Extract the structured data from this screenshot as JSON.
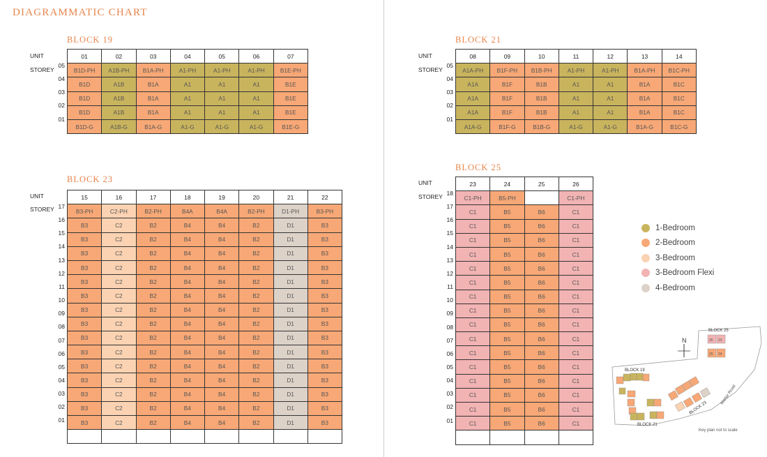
{
  "page_title": "DIAGRAMMATIC CHART",
  "colors": {
    "1-Bedroom": "#c9b45e",
    "2-Bedroom": "#f7a876",
    "3-Bedroom": "#fbd3b2",
    "3-Bedroom Flexi": "#f2b3b3",
    "4-Bedroom": "#ddd2c8",
    "empty": "#ffffff"
  },
  "labels": {
    "unit": "UNIT",
    "storey": "STOREY"
  },
  "legend": [
    {
      "label": "1-Bedroom",
      "type": "1-Bedroom"
    },
    {
      "label": "2-Bedroom",
      "type": "2-Bedroom"
    },
    {
      "label": "3-Bedroom",
      "type": "3-Bedroom"
    },
    {
      "label": "3-Bedroom Flexi",
      "type": "3-Bedroom Flexi"
    },
    {
      "label": "4-Bedroom",
      "type": "4-Bedroom"
    }
  ],
  "blocks": [
    {
      "name": "BLOCK 19",
      "units": [
        "01",
        "02",
        "03",
        "04",
        "05",
        "06",
        "07"
      ],
      "column_types": [
        "2-Bedroom",
        "1-Bedroom",
        "2-Bedroom",
        "1-Bedroom",
        "1-Bedroom",
        "1-Bedroom",
        "2-Bedroom"
      ],
      "rows": [
        {
          "storey": "05",
          "cells": [
            "B1D-PH",
            "A1B-PH",
            "B1A-PH",
            "A1-PH",
            "A1-PH",
            "A1-PH",
            "B1E-PH"
          ]
        },
        {
          "storey": "04",
          "cells": [
            "B1D",
            "A1B",
            "B1A",
            "A1",
            "A1",
            "A1",
            "B1E"
          ]
        },
        {
          "storey": "03",
          "cells": [
            "B1D",
            "A1B",
            "B1A",
            "A1",
            "A1",
            "A1",
            "B1E"
          ]
        },
        {
          "storey": "02",
          "cells": [
            "B1D",
            "A1B",
            "B1A",
            "A1",
            "A1",
            "A1",
            "B1E"
          ]
        },
        {
          "storey": "01",
          "cells": [
            "B1D-G",
            "A1B-G",
            "B1A-G",
            "A1-G",
            "A1-G",
            "A1-G",
            "B1E-G"
          ]
        }
      ]
    },
    {
      "name": "BLOCK 21",
      "units": [
        "08",
        "09",
        "10",
        "11",
        "12",
        "13",
        "14"
      ],
      "column_types": [
        "1-Bedroom",
        "2-Bedroom",
        "2-Bedroom",
        "1-Bedroom",
        "1-Bedroom",
        "2-Bedroom",
        "2-Bedroom"
      ],
      "rows": [
        {
          "storey": "05",
          "cells": [
            "A1A-PH",
            "B1F-PH",
            "B1B-PH",
            "A1-PH",
            "A1-PH",
            "B1A-PH",
            "B1C-PH"
          ]
        },
        {
          "storey": "04",
          "cells": [
            "A1A",
            "B1F",
            "B1B",
            "A1",
            "A1",
            "B1A",
            "B1C"
          ]
        },
        {
          "storey": "03",
          "cells": [
            "A1A",
            "B1F",
            "B1B",
            "A1",
            "A1",
            "B1A",
            "B1C"
          ]
        },
        {
          "storey": "02",
          "cells": [
            "A1A",
            "B1F",
            "B1B",
            "A1",
            "A1",
            "B1A",
            "B1C"
          ]
        },
        {
          "storey": "01",
          "cells": [
            "A1A-G",
            "B1F-G",
            "B1B-G",
            "A1-G",
            "A1-G",
            "B1A-G",
            "B1C-G"
          ]
        }
      ]
    },
    {
      "name": "BLOCK 23",
      "units": [
        "15",
        "16",
        "17",
        "18",
        "19",
        "20",
        "21",
        "22"
      ],
      "column_types": [
        "2-Bedroom",
        "3-Bedroom",
        "2-Bedroom",
        "2-Bedroom",
        "2-Bedroom",
        "2-Bedroom",
        "4-Bedroom",
        "2-Bedroom"
      ],
      "rows": [
        {
          "storey": "17",
          "cells": [
            "B3-PH",
            "C2-PH",
            "B2-PH",
            "B4A",
            "B4A",
            "B2-PH",
            "D1-PH",
            "B3-PH"
          ]
        },
        {
          "storey": "16",
          "cells": [
            "B3",
            "C2",
            "B2",
            "B4",
            "B4",
            "B2",
            "D1",
            "B3"
          ]
        },
        {
          "storey": "15",
          "cells": [
            "B3",
            "C2",
            "B2",
            "B4",
            "B4",
            "B2",
            "D1",
            "B3"
          ]
        },
        {
          "storey": "14",
          "cells": [
            "B3",
            "C2",
            "B2",
            "B4",
            "B4",
            "B2",
            "D1",
            "B3"
          ]
        },
        {
          "storey": "13",
          "cells": [
            "B3",
            "C2",
            "B2",
            "B4",
            "B4",
            "B2",
            "D1",
            "B3"
          ]
        },
        {
          "storey": "12",
          "cells": [
            "B3",
            "C2",
            "B2",
            "B4",
            "B4",
            "B2",
            "D1",
            "B3"
          ]
        },
        {
          "storey": "11",
          "cells": [
            "B3",
            "C2",
            "B2",
            "B4",
            "B4",
            "B2",
            "D1",
            "B3"
          ]
        },
        {
          "storey": "10",
          "cells": [
            "B3",
            "C2",
            "B2",
            "B4",
            "B4",
            "B2",
            "D1",
            "B3"
          ]
        },
        {
          "storey": "09",
          "cells": [
            "B3",
            "C2",
            "B2",
            "B4",
            "B4",
            "B2",
            "D1",
            "B3"
          ]
        },
        {
          "storey": "08",
          "cells": [
            "B3",
            "C2",
            "B2",
            "B4",
            "B4",
            "B2",
            "D1",
            "B3"
          ]
        },
        {
          "storey": "07",
          "cells": [
            "B3",
            "C2",
            "B2",
            "B4",
            "B4",
            "B2",
            "D1",
            "B3"
          ]
        },
        {
          "storey": "06",
          "cells": [
            "B3",
            "C2",
            "B2",
            "B4",
            "B4",
            "B2",
            "D1",
            "B3"
          ]
        },
        {
          "storey": "05",
          "cells": [
            "B3",
            "C2",
            "B2",
            "B4",
            "B4",
            "B2",
            "D1",
            "B3"
          ]
        },
        {
          "storey": "04",
          "cells": [
            "B3",
            "C2",
            "B2",
            "B4",
            "B4",
            "B2",
            "D1",
            "B3"
          ]
        },
        {
          "storey": "03",
          "cells": [
            "B3",
            "C2",
            "B2",
            "B4",
            "B4",
            "B2",
            "D1",
            "B3"
          ]
        },
        {
          "storey": "02",
          "cells": [
            "B3",
            "C2",
            "B2",
            "B4",
            "B4",
            "B2",
            "D1",
            "B3"
          ]
        },
        {
          "storey": "01",
          "cells": [
            "",
            "",
            "",
            "",
            "",
            "",
            "",
            ""
          ]
        }
      ]
    },
    {
      "name": "BLOCK 25",
      "units": [
        "23",
        "24",
        "25",
        "26"
      ],
      "column_types": [
        "3-Bedroom Flexi",
        "2-Bedroom",
        "2-Bedroom",
        "3-Bedroom Flexi"
      ],
      "rows": [
        {
          "storey": "18",
          "cells": [
            "C1-PH",
            "B5-PH",
            "",
            "C1-PH"
          ]
        },
        {
          "storey": "17",
          "cells": [
            "C1",
            "B5",
            "B6",
            "C1"
          ]
        },
        {
          "storey": "16",
          "cells": [
            "C1",
            "B5",
            "B6",
            "C1"
          ]
        },
        {
          "storey": "15",
          "cells": [
            "C1",
            "B5",
            "B6",
            "C1"
          ]
        },
        {
          "storey": "14",
          "cells": [
            "C1",
            "B5",
            "B6",
            "C1"
          ]
        },
        {
          "storey": "13",
          "cells": [
            "C1",
            "B5",
            "B6",
            "C1"
          ]
        },
        {
          "storey": "12",
          "cells": [
            "C1",
            "B5",
            "B6",
            "C1"
          ]
        },
        {
          "storey": "11",
          "cells": [
            "C1",
            "B5",
            "B6",
            "C1"
          ]
        },
        {
          "storey": "10",
          "cells": [
            "C1",
            "B5",
            "B6",
            "C1"
          ]
        },
        {
          "storey": "09",
          "cells": [
            "C1",
            "B5",
            "B6",
            "C1"
          ]
        },
        {
          "storey": "08",
          "cells": [
            "C1",
            "B5",
            "B6",
            "C1"
          ]
        },
        {
          "storey": "07",
          "cells": [
            "C1",
            "B5",
            "B6",
            "C1"
          ]
        },
        {
          "storey": "06",
          "cells": [
            "C1",
            "B5",
            "B6",
            "C1"
          ]
        },
        {
          "storey": "05",
          "cells": [
            "C1",
            "B5",
            "B6",
            "C1"
          ]
        },
        {
          "storey": "04",
          "cells": [
            "C1",
            "B5",
            "B6",
            "C1"
          ]
        },
        {
          "storey": "03",
          "cells": [
            "C1",
            "B5",
            "B6",
            "C1"
          ]
        },
        {
          "storey": "02",
          "cells": [
            "C1",
            "B5",
            "B6",
            "C1"
          ]
        },
        {
          "storey": "01",
          "cells": [
            "",
            "",
            "",
            ""
          ]
        }
      ]
    }
  ],
  "keyplan": {
    "north": "N",
    "block25": "BLOCK 25",
    "block19": "BLOCK 19",
    "block21": "BLOCK 21",
    "block23": "BLOCK 23",
    "road": "Mattar Road",
    "note": "Key plan not to scale"
  }
}
